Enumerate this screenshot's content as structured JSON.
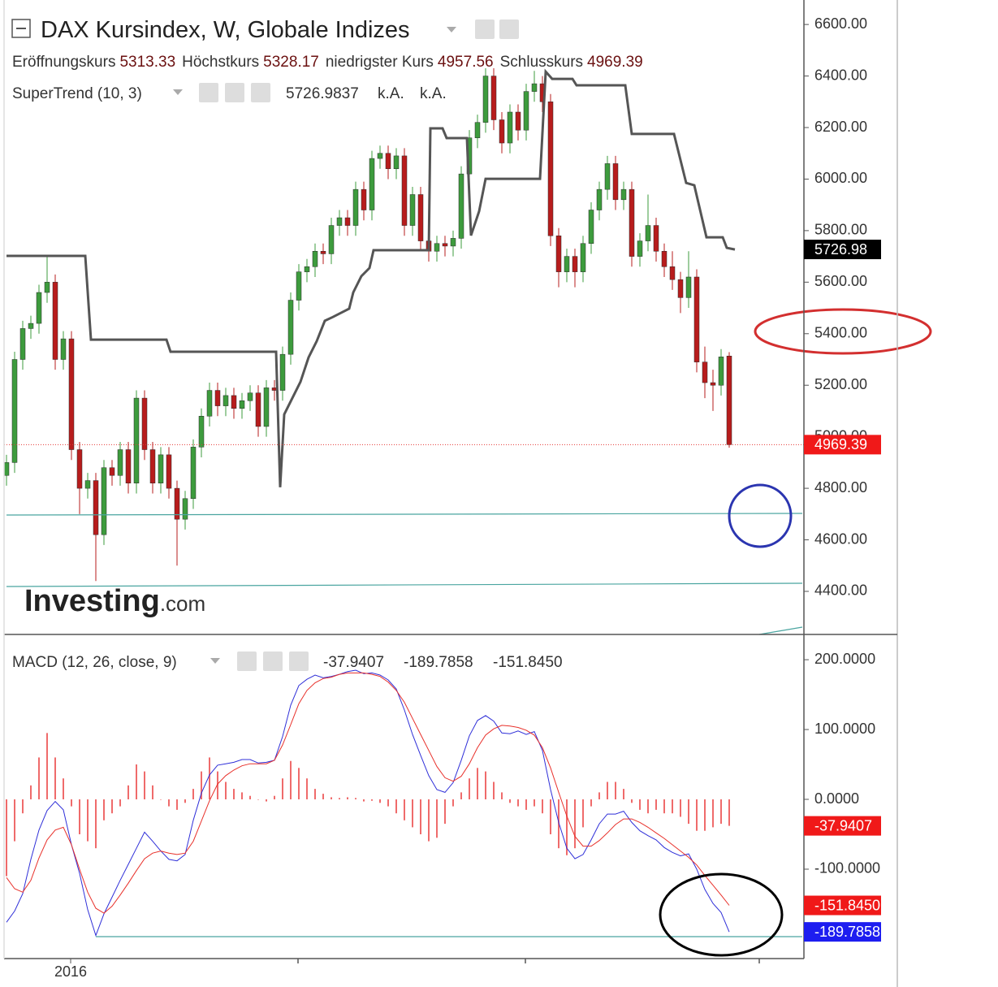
{
  "chart_data": [
    {
      "type": "candlestick",
      "title": "DAX Kursindex, W, Globale Indizes",
      "ohlc_labels": [
        "Eröffnungskurs",
        "Höchstkurs",
        "niedrigster Kurs",
        "Schlusskurs"
      ],
      "up_color": "#3d9b3d",
      "down_color": "#b71c1c",
      "close_line_color": "#e53935",
      "ohlc": [
        [
          4850,
          4930,
          4810,
          4900
        ],
        [
          4900,
          5330,
          4860,
          5300
        ],
        [
          5300,
          5450,
          5260,
          5420
        ],
        [
          5420,
          5470,
          5380,
          5440
        ],
        [
          5440,
          5590,
          5400,
          5560
        ],
        [
          5560,
          5700,
          5520,
          5600
        ],
        [
          5600,
          5630,
          5260,
          5300
        ],
        [
          5300,
          5410,
          5260,
          5380
        ],
        [
          5380,
          5410,
          4910,
          4950
        ],
        [
          4950,
          4980,
          4700,
          4800
        ],
        [
          4800,
          4860,
          4760,
          4830
        ],
        [
          4830,
          4860,
          4440,
          4620
        ],
        [
          4620,
          4910,
          4580,
          4880
        ],
        [
          4880,
          4910,
          4810,
          4850
        ],
        [
          4850,
          4980,
          4810,
          4950
        ],
        [
          4950,
          4980,
          4780,
          4820
        ],
        [
          4820,
          5180,
          4780,
          5150
        ],
        [
          5150,
          5180,
          4910,
          4950
        ],
        [
          4950,
          4980,
          4780,
          4820
        ],
        [
          4820,
          4960,
          4780,
          4930
        ],
        [
          4930,
          4960,
          4760,
          4800
        ],
        [
          4800,
          4830,
          4500,
          4680
        ],
        [
          4680,
          4790,
          4640,
          4760
        ],
        [
          4760,
          4990,
          4720,
          4960
        ],
        [
          4960,
          5110,
          4920,
          5080
        ],
        [
          5080,
          5210,
          5040,
          5180
        ],
        [
          5180,
          5210,
          5080,
          5120
        ],
        [
          5120,
          5190,
          5080,
          5160
        ],
        [
          5160,
          5190,
          5070,
          5110
        ],
        [
          5110,
          5170,
          5070,
          5140
        ],
        [
          5140,
          5200,
          5100,
          5170
        ],
        [
          5170,
          5200,
          5000,
          5040
        ],
        [
          5040,
          5220,
          5000,
          5190
        ],
        [
          5190,
          5220,
          5140,
          5180
        ],
        [
          5180,
          5350,
          5140,
          5320
        ],
        [
          5320,
          5560,
          5280,
          5530
        ],
        [
          5530,
          5670,
          5490,
          5640
        ],
        [
          5640,
          5690,
          5600,
          5660
        ],
        [
          5660,
          5750,
          5620,
          5720
        ],
        [
          5720,
          5750,
          5670,
          5710
        ],
        [
          5710,
          5850,
          5670,
          5820
        ],
        [
          5820,
          5880,
          5780,
          5850
        ],
        [
          5850,
          5880,
          5780,
          5820
        ],
        [
          5820,
          5990,
          5780,
          5960
        ],
        [
          5960,
          5990,
          5840,
          5880
        ],
        [
          5880,
          6110,
          5840,
          6080
        ],
        [
          6080,
          6130,
          6040,
          6100
        ],
        [
          6100,
          6130,
          6000,
          6040
        ],
        [
          6040,
          6120,
          6000,
          6090
        ],
        [
          6090,
          6120,
          5780,
          5820
        ],
        [
          5820,
          5970,
          5780,
          5940
        ],
        [
          5940,
          5970,
          5720,
          5760
        ],
        [
          5760,
          5790,
          5680,
          5720
        ],
        [
          5720,
          5780,
          5680,
          5750
        ],
        [
          5750,
          5780,
          5700,
          5740
        ],
        [
          5740,
          5800,
          5700,
          5770
        ],
        [
          5770,
          6050,
          5730,
          6020
        ],
        [
          6020,
          6190,
          5980,
          6160
        ],
        [
          6160,
          6250,
          6120,
          6220
        ],
        [
          6220,
          6430,
          6180,
          6400
        ],
        [
          6400,
          6430,
          6190,
          6230
        ],
        [
          6230,
          6260,
          6100,
          6140
        ],
        [
          6140,
          6290,
          6100,
          6260
        ],
        [
          6260,
          6290,
          6150,
          6190
        ],
        [
          6190,
          6370,
          6150,
          6340
        ],
        [
          6340,
          6420,
          6300,
          6370
        ],
        [
          6370,
          6400,
          6260,
          6300
        ],
        [
          6300,
          6330,
          5740,
          5780
        ],
        [
          5780,
          5810,
          5580,
          5640
        ],
        [
          5640,
          5730,
          5600,
          5700
        ],
        [
          5700,
          5730,
          5580,
          5640
        ],
        [
          5640,
          5780,
          5600,
          5750
        ],
        [
          5750,
          5910,
          5710,
          5880
        ],
        [
          5880,
          5990,
          5840,
          5960
        ],
        [
          5960,
          6090,
          5920,
          6060
        ],
        [
          6060,
          6090,
          5880,
          5920
        ],
        [
          5920,
          5990,
          5880,
          5960
        ],
        [
          5960,
          5990,
          5660,
          5700
        ],
        [
          5700,
          5790,
          5660,
          5760
        ],
        [
          5760,
          5940,
          5720,
          5820
        ],
        [
          5820,
          5850,
          5680,
          5720
        ],
        [
          5720,
          5750,
          5620,
          5660
        ],
        [
          5660,
          5720,
          5570,
          5610
        ],
        [
          5610,
          5640,
          5480,
          5540
        ],
        [
          5540,
          5720,
          5500,
          5620
        ],
        [
          5620,
          5650,
          5250,
          5290
        ],
        [
          5290,
          5350,
          5150,
          5210
        ],
        [
          5210,
          5260,
          5100,
          5200
        ],
        [
          5200,
          5340,
          5160,
          5310
        ],
        [
          5313.33,
          5328.17,
          4957.56,
          4969.39
        ]
      ],
      "xlim": [
        -0.3,
        98.2
      ],
      "xticks": [
        {
          "value": 7.9,
          "label": "2016"
        }
      ],
      "ylim": [
        4236,
        6695
      ],
      "yticks": [
        {
          "value": 6600,
          "label": "6600.00"
        },
        {
          "value": 6400,
          "label": "6400.00"
        },
        {
          "value": 6200,
          "label": "6200.00"
        },
        {
          "value": 6000,
          "label": "6000.00"
        },
        {
          "value": 5800,
          "label": "5800.00"
        },
        {
          "value": 5600,
          "label": "5600.00"
        },
        {
          "value": 5400,
          "label": "5400.00"
        },
        {
          "value": 5200,
          "label": "5200.00"
        },
        {
          "value": 5000,
          "label": "5000.00"
        },
        {
          "value": 4800,
          "label": "4800.00"
        },
        {
          "value": 4600,
          "label": "4600.00"
        },
        {
          "value": 4400,
          "label": "4400.00"
        }
      ],
      "indicator": {
        "name": "SuperTrend (10, 3)",
        "color": "#555555",
        "x": [
          0,
          9.7,
          10.4,
          19.7,
          20.2,
          33.2,
          33.7,
          34.2,
          35.2,
          36.2,
          37.2,
          38.2,
          39.2,
          40.2,
          41.2,
          42.2,
          42.7,
          43.7,
          44.7,
          45.2,
          52,
          52.2,
          53.7,
          54.2,
          56.7,
          57.2,
          58.2,
          59,
          65.7,
          66.4,
          67.2,
          69.7,
          70.2,
          76.2,
          77,
          82.2,
          83.7,
          84.7,
          86.2,
          88.2,
          88.7,
          89.7
        ],
        "values": [
          5702,
          5702,
          5377,
          5377,
          5330,
          5330,
          4804,
          5087,
          5150,
          5213,
          5308,
          5371,
          5450,
          5465,
          5481,
          5497,
          5560,
          5623,
          5655,
          5724,
          5724,
          6197,
          6197,
          6159,
          6159,
          5781,
          5875,
          6001,
          6001,
          6417,
          6389,
          6389,
          6364,
          6364,
          6175,
          6175,
          5985,
          5976,
          5774,
          5774,
          5733,
          5726.9837
        ],
        "value_label": "5726.98",
        "status": [
          "k.A.",
          "k.A."
        ]
      },
      "watermark": {
        "brand": "Investing",
        "suffix": ".com"
      }
    },
    {
      "type": "macd",
      "title": "MACD (12, 26, close, 9)",
      "xlim": [
        -0.3,
        98.2
      ],
      "ylim": [
        -228,
        235
      ],
      "yticks": [
        {
          "value": 200,
          "label": "200.0000"
        },
        {
          "value": 100,
          "label": "100.0000"
        },
        {
          "value": 0,
          "label": "0.0000"
        },
        {
          "value": -100,
          "label": "-100.0000"
        }
      ],
      "series": [
        {
          "style": "histogram",
          "color": "#ef6b6b",
          "value_label": "-37.9407",
          "values": [
            -110,
            -60,
            -20,
            20,
            60,
            95,
            60,
            30,
            -10,
            -50,
            -60,
            -70,
            -30,
            -20,
            -10,
            20,
            50,
            40,
            20,
            0,
            -10,
            -15,
            -5,
            15,
            40,
            60,
            40,
            25,
            15,
            10,
            5,
            0,
            -3,
            5,
            30,
            55,
            45,
            30,
            15,
            8,
            3,
            2,
            3,
            2,
            -3,
            -2,
            -5,
            -10,
            -20,
            -30,
            -40,
            -50,
            -60,
            -55,
            -35,
            -10,
            10,
            30,
            45,
            40,
            25,
            10,
            -5,
            -10,
            -15,
            -10,
            -20,
            -50,
            -70,
            -80,
            -70,
            -40,
            -10,
            10,
            25,
            25,
            15,
            -5,
            -15,
            -20,
            -15,
            -20,
            -20,
            -25,
            -35,
            -45,
            -45,
            -40,
            -35,
            -37.9407
          ]
        },
        {
          "style": "line",
          "color": "#2f2fd8",
          "value_label": "-189.7858",
          "values": [
            -176,
            -160,
            -135,
            -86,
            -44,
            -16,
            -3,
            -15,
            -65,
            -106,
            -158,
            -195,
            -164,
            -140,
            -116,
            -93,
            -70,
            -47,
            -60,
            -74,
            -86,
            -88,
            -79,
            -30,
            9,
            35,
            49,
            51,
            53,
            57,
            57,
            52,
            53,
            56,
            90,
            135,
            163,
            172,
            178,
            174,
            176,
            179,
            183,
            185,
            180,
            181,
            178,
            171,
            158,
            128,
            93,
            63,
            34,
            14,
            10,
            24,
            56,
            91,
            113,
            120,
            112,
            95,
            94,
            98,
            93,
            97,
            70,
            14,
            -33,
            -70,
            -85,
            -79,
            -58,
            -35,
            -21,
            -21,
            -17,
            -33,
            -45,
            -52,
            -58,
            -69,
            -76,
            -81,
            -78,
            -100,
            -129,
            -149,
            -162,
            -189.7858
          ]
        },
        {
          "style": "line",
          "color": "#e8302a",
          "value_label": "-151.8450",
          "values": [
            -112,
            -128,
            -133,
            -116,
            -84,
            -58,
            -44,
            -40,
            -65,
            -100,
            -133,
            -156,
            -163,
            -153,
            -137,
            -120,
            -102,
            -85,
            -77,
            -74,
            -77,
            -79,
            -77,
            -60,
            -31,
            -2,
            22,
            34,
            42,
            48,
            51,
            51,
            51,
            56,
            78,
            107,
            137,
            156,
            167,
            173,
            175,
            179,
            181,
            181,
            181,
            179,
            176,
            168,
            156,
            139,
            116,
            93,
            70,
            47,
            31,
            26,
            33,
            51,
            74,
            92,
            101,
            106,
            105,
            103,
            99,
            92,
            74,
            45,
            10,
            -24,
            -53,
            -67,
            -67,
            -59,
            -48,
            -36,
            -28,
            -28,
            -33,
            -40,
            -48,
            -56,
            -65,
            -74,
            -83,
            -94,
            -109,
            -123,
            -137,
            -151.845
          ]
        }
      ]
    }
  ]
}
